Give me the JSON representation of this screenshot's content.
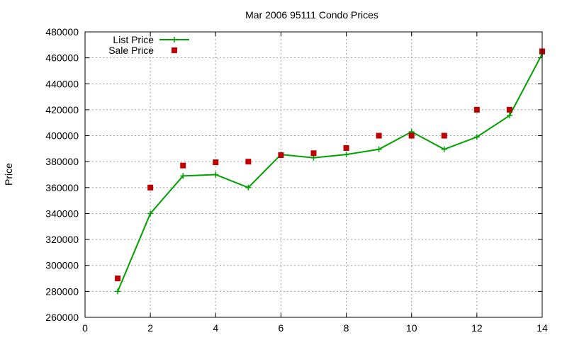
{
  "chart_data": {
    "type": "line",
    "title": "Mar 2006 95111 Condo Prices",
    "xlabel": "",
    "ylabel": "Price",
    "xlim": [
      0,
      14
    ],
    "ylim": [
      260000,
      480000
    ],
    "xticks": [
      0,
      2,
      4,
      6,
      8,
      10,
      12,
      14
    ],
    "yticks": [
      260000,
      280000,
      300000,
      320000,
      340000,
      360000,
      380000,
      400000,
      420000,
      440000,
      460000,
      480000
    ],
    "grid": true,
    "legend_position": "top-left",
    "series": [
      {
        "name": "List Price",
        "style": "lines+crosses",
        "color": "#00a000",
        "x": [
          1,
          2,
          3,
          4,
          5,
          6,
          7,
          8,
          9,
          10,
          11,
          12,
          13,
          14
        ],
        "y": [
          280000,
          340000,
          369000,
          370000,
          360000,
          385500,
          383000,
          385500,
          389500,
          403000,
          389500,
          399000,
          415500,
          463000
        ]
      },
      {
        "name": "Sale Price",
        "style": "points-square",
        "color": "#c00000",
        "x": [
          1,
          2,
          3,
          4,
          5,
          6,
          7,
          8,
          9,
          10,
          11,
          12,
          13,
          14
        ],
        "y": [
          290000,
          360000,
          377000,
          379500,
          380000,
          385000,
          386500,
          390500,
          400000,
          400000,
          400000,
          420000,
          420000,
          465000
        ]
      }
    ]
  }
}
